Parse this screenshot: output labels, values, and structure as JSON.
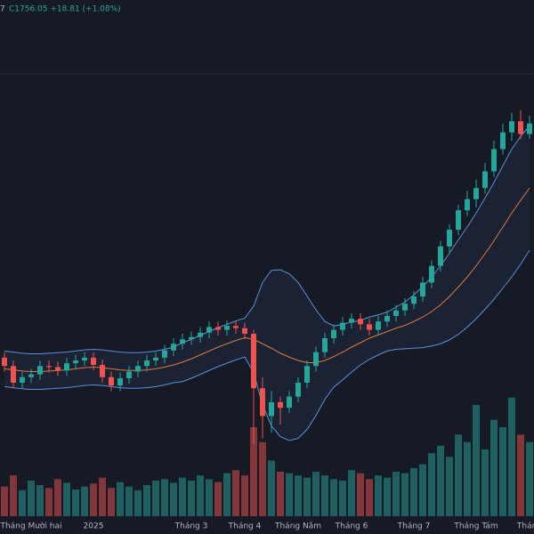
{
  "chart_data": {
    "type": "candlestick",
    "header_prefix": "7",
    "header": "C1756.05 +18.81 (+1.08%)",
    "categories": [
      null,
      null,
      null,
      "Tháng Mười hai",
      null,
      null,
      null,
      null,
      null,
      null,
      "2025",
      null,
      null,
      null,
      null,
      null,
      null,
      null,
      null,
      null,
      null,
      "Tháng 3",
      null,
      null,
      null,
      null,
      null,
      "Tháng 4",
      null,
      null,
      null,
      null,
      null,
      "Tháng Năm",
      null,
      null,
      null,
      null,
      null,
      "Tháng 6",
      null,
      null,
      null,
      null,
      null,
      null,
      "Tháng 7",
      null,
      null,
      null,
      null,
      null,
      null,
      "Tháng Tám",
      null,
      null,
      null,
      null,
      null,
      "Tháng"
    ],
    "open": [
      1335,
      1320,
      1290,
      1300,
      1305,
      1320,
      1318,
      1312,
      1325,
      1330,
      1335,
      1322,
      1300,
      1285,
      1298,
      1310,
      1320,
      1330,
      1335,
      1348,
      1360,
      1368,
      1372,
      1380,
      1390,
      1385,
      1392,
      1388,
      1378,
      1280,
      1230,
      1255,
      1245,
      1265,
      1290,
      1320,
      1345,
      1370,
      1385,
      1398,
      1405,
      1395,
      1385,
      1400,
      1410,
      1420,
      1432,
      1445,
      1470,
      1500,
      1535,
      1565,
      1600,
      1620,
      1640,
      1670,
      1710,
      1740,
      1760,
      1737.24
    ],
    "high": [
      1345,
      1330,
      1310,
      1315,
      1330,
      1330,
      1328,
      1335,
      1340,
      1345,
      1345,
      1332,
      1310,
      1308,
      1320,
      1330,
      1340,
      1345,
      1358,
      1370,
      1378,
      1382,
      1390,
      1400,
      1400,
      1402,
      1402,
      1398,
      1385,
      1300,
      1275,
      1265,
      1275,
      1300,
      1330,
      1355,
      1380,
      1395,
      1408,
      1415,
      1415,
      1405,
      1410,
      1420,
      1430,
      1442,
      1455,
      1480,
      1510,
      1545,
      1575,
      1610,
      1635,
      1655,
      1685,
      1725,
      1755,
      1775,
      1780,
      1770
    ],
    "low": [
      1310,
      1280,
      1280,
      1290,
      1295,
      1308,
      1302,
      1302,
      1315,
      1320,
      1312,
      1290,
      1275,
      1275,
      1288,
      1300,
      1310,
      1320,
      1325,
      1338,
      1350,
      1358,
      1362,
      1370,
      1375,
      1375,
      1378,
      1368,
      1180,
      1190,
      1200,
      1215,
      1235,
      1255,
      1280,
      1310,
      1335,
      1360,
      1375,
      1388,
      1385,
      1375,
      1375,
      1390,
      1400,
      1410,
      1422,
      1435,
      1460,
      1490,
      1525,
      1555,
      1590,
      1605,
      1630,
      1660,
      1700,
      1725,
      1728,
      1728
    ],
    "close": [
      1320,
      1290,
      1300,
      1305,
      1320,
      1318,
      1312,
      1325,
      1330,
      1335,
      1322,
      1300,
      1285,
      1298,
      1310,
      1320,
      1330,
      1335,
      1348,
      1360,
      1368,
      1372,
      1380,
      1390,
      1385,
      1392,
      1388,
      1378,
      1280,
      1230,
      1255,
      1245,
      1265,
      1290,
      1320,
      1345,
      1370,
      1385,
      1398,
      1405,
      1395,
      1385,
      1400,
      1410,
      1420,
      1432,
      1445,
      1470,
      1500,
      1535,
      1565,
      1600,
      1620,
      1640,
      1670,
      1710,
      1740,
      1760,
      1737.24,
      1756.05
    ],
    "volume": [
      40,
      55,
      35,
      48,
      42,
      38,
      50,
      45,
      36,
      40,
      44,
      52,
      38,
      46,
      40,
      35,
      42,
      48,
      50,
      45,
      52,
      48,
      55,
      50,
      46,
      58,
      62,
      55,
      120,
      100,
      75,
      60,
      58,
      55,
      52,
      60,
      55,
      50,
      48,
      62,
      58,
      50,
      55,
      52,
      60,
      58,
      65,
      70,
      85,
      95,
      80,
      110,
      100,
      150,
      90,
      130,
      120,
      160,
      110,
      100
    ],
    "upper": [
      1347,
      1345,
      1343,
      1342,
      1342,
      1343,
      1344,
      1345,
      1347,
      1349,
      1350,
      1349,
      1347,
      1345,
      1344,
      1344,
      1345,
      1347,
      1350,
      1354,
      1362,
      1368,
      1375,
      1382,
      1389,
      1395,
      1401,
      1406,
      1428,
      1470,
      1492,
      1493,
      1486,
      1470,
      1446,
      1421,
      1400,
      1392,
      1395,
      1399,
      1402,
      1408,
      1412,
      1417,
      1426,
      1435,
      1448,
      1463,
      1480,
      1500,
      1523,
      1547,
      1570,
      1595,
      1622,
      1650,
      1680,
      1710,
      1733,
      1752
    ],
    "middle": [
      1315,
      1313,
      1311,
      1310,
      1310,
      1311,
      1312,
      1313,
      1315,
      1317,
      1318,
      1317,
      1315,
      1313,
      1312,
      1312,
      1313,
      1315,
      1318,
      1322,
      1327,
      1333,
      1340,
      1347,
      1354,
      1360,
      1366,
      1371,
      1368,
      1360,
      1352,
      1343,
      1336,
      1330,
      1326,
      1326,
      1330,
      1337,
      1345,
      1354,
      1362,
      1370,
      1376,
      1382,
      1388,
      1393,
      1400,
      1408,
      1418,
      1430,
      1445,
      1462,
      1480,
      1500,
      1522,
      1545,
      1570,
      1595,
      1618,
      1640
    ],
    "lower": [
      1283,
      1281,
      1279,
      1278,
      1278,
      1279,
      1280,
      1281,
      1283,
      1285,
      1286,
      1285,
      1283,
      1281,
      1280,
      1280,
      1281,
      1283,
      1286,
      1290,
      1292,
      1298,
      1305,
      1312,
      1319,
      1325,
      1331,
      1336,
      1308,
      1250,
      1212,
      1193,
      1186,
      1190,
      1206,
      1231,
      1260,
      1282,
      1295,
      1309,
      1322,
      1332,
      1340,
      1347,
      1350,
      1351,
      1352,
      1353,
      1356,
      1360,
      1367,
      1377,
      1390,
      1405,
      1422,
      1440,
      1460,
      1480,
      1503,
      1528
    ],
    "ylim": [
      1050,
      1850
    ],
    "volume_lim": [
      0,
      300
    ],
    "up_color": "#26a69a",
    "down_color": "#ef5350",
    "band_color": "#5b8fd9",
    "middle_color": "#e07b39"
  }
}
